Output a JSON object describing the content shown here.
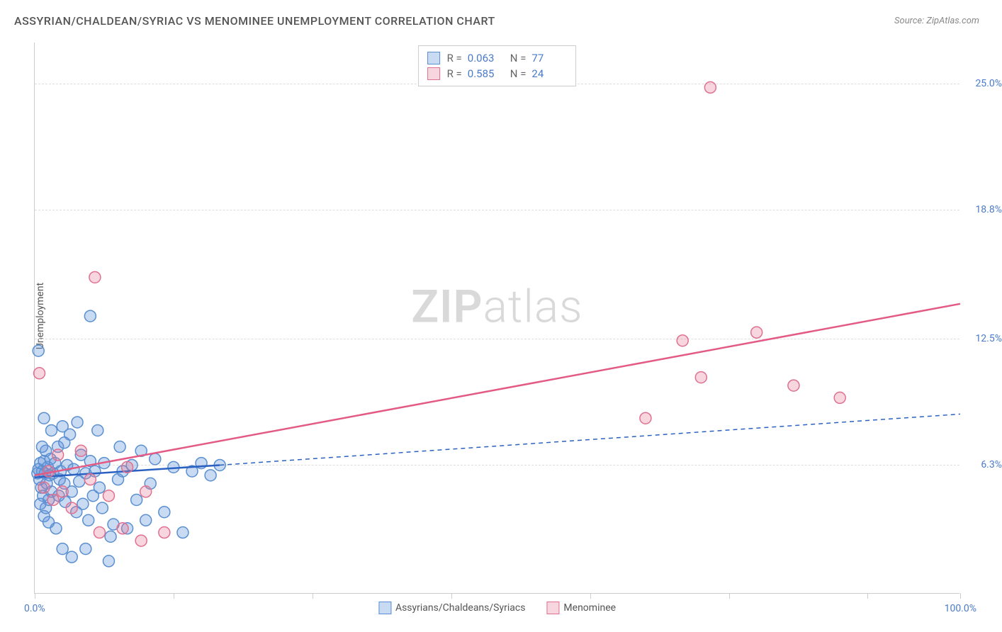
{
  "title": "ASSYRIAN/CHALDEAN/SYRIAC VS MENOMINEE UNEMPLOYMENT CORRELATION CHART",
  "source": "Source: ZipAtlas.com",
  "watermark_zip": "ZIP",
  "watermark_atlas": "atlas",
  "chart": {
    "type": "scatter",
    "background_color": "#ffffff",
    "grid_color": "#dddddd",
    "axis_color": "#cccccc",
    "text_color": "#555555",
    "tick_label_color": "#4a7bc8",
    "title_fontsize": 16,
    "tick_fontsize": 14,
    "y_axis_label": "Unemployment",
    "xlim": [
      0,
      100
    ],
    "ylim": [
      0,
      27
    ],
    "x_ticks": [
      0,
      15,
      30,
      45,
      60,
      75,
      90,
      100
    ],
    "x_tick_labels_shown": {
      "0": "0.0%",
      "100": "100.0%"
    },
    "y_gridlines": [
      6.3,
      12.5,
      18.8,
      25.0
    ],
    "y_tick_labels": [
      "6.3%",
      "12.5%",
      "18.8%",
      "25.0%"
    ],
    "marker_radius": 8,
    "marker_stroke_width": 1.5,
    "trend_line_width": 2.5,
    "dashed_segment": "6,5"
  },
  "series": [
    {
      "name": "Assyrians/Chaldeans/Syriacs",
      "fill_color": "rgba(100,150,220,0.35)",
      "stroke_color": "#5a8fd0",
      "trend_color": "#2b62c2",
      "R": "0.063",
      "N": "77",
      "trend": {
        "x1": 0,
        "y1": 5.7,
        "x2": 20,
        "y2": 6.3,
        "x2_ext": 100,
        "y2_ext": 8.8
      },
      "points": [
        [
          0.3,
          5.9
        ],
        [
          0.4,
          6.1
        ],
        [
          0.5,
          5.6
        ],
        [
          0.6,
          6.4
        ],
        [
          0.7,
          5.2
        ],
        [
          0.8,
          6.0
        ],
        [
          0.9,
          4.8
        ],
        [
          1.0,
          6.5
        ],
        [
          1.1,
          5.9
        ],
        [
          1.2,
          7.0
        ],
        [
          1.3,
          5.4
        ],
        [
          1.4,
          6.2
        ],
        [
          1.5,
          4.6
        ],
        [
          1.6,
          5.8
        ],
        [
          1.7,
          6.6
        ],
        [
          1.8,
          5.0
        ],
        [
          0.4,
          11.9
        ],
        [
          1.0,
          3.8
        ],
        [
          1.2,
          4.2
        ],
        [
          1.5,
          3.5
        ],
        [
          2.0,
          5.9
        ],
        [
          2.2,
          6.4
        ],
        [
          2.5,
          7.2
        ],
        [
          2.7,
          5.6
        ],
        [
          2.8,
          6.0
        ],
        [
          3.0,
          8.2
        ],
        [
          3.2,
          5.4
        ],
        [
          3.3,
          4.5
        ],
        [
          3.5,
          6.3
        ],
        [
          3.8,
          7.8
        ],
        [
          4.0,
          5.0
        ],
        [
          4.2,
          6.1
        ],
        [
          4.5,
          4.0
        ],
        [
          4.6,
          8.4
        ],
        [
          4.8,
          5.5
        ],
        [
          5.0,
          6.8
        ],
        [
          5.2,
          4.4
        ],
        [
          5.5,
          5.9
        ],
        [
          5.8,
          3.6
        ],
        [
          6.0,
          6.5
        ],
        [
          6.3,
          4.8
        ],
        [
          6.5,
          6.0
        ],
        [
          6.8,
          8.0
        ],
        [
          7.0,
          5.2
        ],
        [
          7.3,
          4.2
        ],
        [
          7.5,
          6.4
        ],
        [
          8.0,
          1.6
        ],
        [
          8.2,
          2.8
        ],
        [
          6.0,
          13.6
        ],
        [
          8.5,
          3.4
        ],
        [
          9.0,
          5.6
        ],
        [
          9.2,
          7.2
        ],
        [
          9.5,
          6.0
        ],
        [
          10.0,
          3.2
        ],
        [
          10.5,
          6.3
        ],
        [
          11.0,
          4.6
        ],
        [
          3.0,
          2.2
        ],
        [
          4.0,
          1.8
        ],
        [
          11.5,
          7.0
        ],
        [
          12.0,
          3.6
        ],
        [
          12.5,
          5.4
        ],
        [
          13.0,
          6.6
        ],
        [
          14.0,
          4.0
        ],
        [
          15.0,
          6.2
        ],
        [
          16.0,
          3.0
        ],
        [
          17.0,
          6.0
        ],
        [
          18.0,
          6.4
        ],
        [
          19.0,
          5.8
        ],
        [
          20.0,
          6.3
        ],
        [
          1.0,
          8.6
        ],
        [
          1.8,
          8.0
        ],
        [
          2.3,
          3.2
        ],
        [
          2.6,
          4.8
        ],
        [
          3.2,
          7.4
        ],
        [
          0.6,
          4.4
        ],
        [
          0.8,
          7.2
        ],
        [
          5.5,
          2.2
        ]
      ]
    },
    {
      "name": "Menominee",
      "fill_color": "rgba(230,120,150,0.30)",
      "stroke_color": "#e07090",
      "trend_color": "#e35a85",
      "R": "0.585",
      "N": "24",
      "trend": {
        "x1": 0,
        "y1": 5.8,
        "x2": 100,
        "y2": 14.2
      },
      "points": [
        [
          0.5,
          10.8
        ],
        [
          1.0,
          5.2
        ],
        [
          1.5,
          6.0
        ],
        [
          2.0,
          4.6
        ],
        [
          2.5,
          6.8
        ],
        [
          3.0,
          5.0
        ],
        [
          4.0,
          4.2
        ],
        [
          5.0,
          7.0
        ],
        [
          6.0,
          5.6
        ],
        [
          6.5,
          15.5
        ],
        [
          7.0,
          3.0
        ],
        [
          8.0,
          4.8
        ],
        [
          9.5,
          3.2
        ],
        [
          10.0,
          6.2
        ],
        [
          11.5,
          2.6
        ],
        [
          12.0,
          5.0
        ],
        [
          14.0,
          3.0
        ],
        [
          66.0,
          8.6
        ],
        [
          70.0,
          12.4
        ],
        [
          72.0,
          10.6
        ],
        [
          73.0,
          24.8
        ],
        [
          78.0,
          12.8
        ],
        [
          82.0,
          10.2
        ],
        [
          87.0,
          9.6
        ]
      ]
    }
  ],
  "legend_top": {
    "r_label": "R =",
    "n_label": "N ="
  },
  "legend_bottom": {
    "items": [
      "Assyrians/Chaldeans/Syriacs",
      "Menominee"
    ]
  }
}
